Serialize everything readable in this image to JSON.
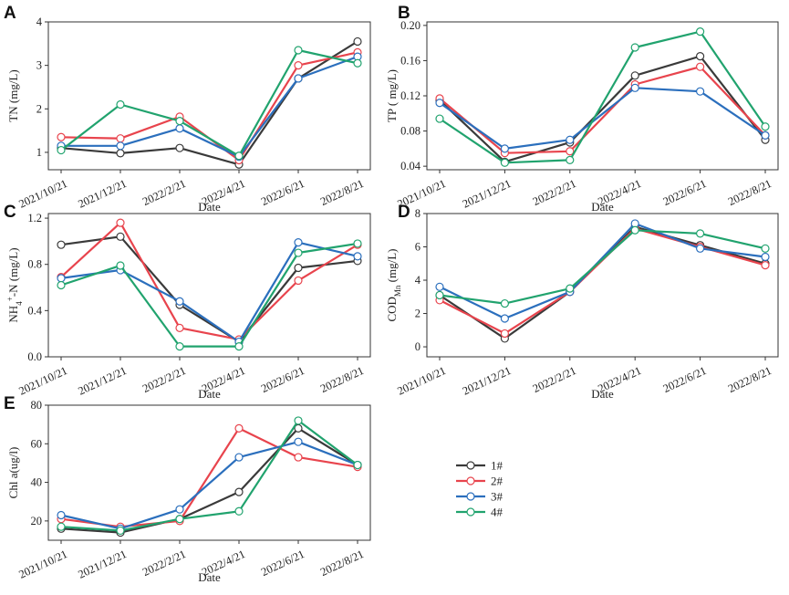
{
  "legend": {
    "entries": [
      "1#",
      "2#",
      "3#",
      "4#"
    ],
    "colors": [
      "#3a3a3a",
      "#e8444d",
      "#2b6fbd",
      "#21a36e"
    ]
  },
  "chart_data": [
    {
      "type": "line",
      "panel": "A",
      "categories": [
        "2021/10/21",
        "2021/12/21",
        "2022/2/21",
        "2022/4/21",
        "2022/6/21",
        "2022/8/21"
      ],
      "xlabel": "Date",
      "ylabel": "TN (mg/L)",
      "ylim": [
        0.6,
        4.0
      ],
      "yticks": [
        1,
        2,
        3,
        4
      ],
      "series": [
        {
          "name": "1#",
          "values": [
            1.1,
            0.98,
            1.1,
            0.72,
            2.7,
            3.55
          ]
        },
        {
          "name": "2#",
          "values": [
            1.35,
            1.32,
            1.82,
            0.82,
            3.0,
            3.3
          ]
        },
        {
          "name": "3#",
          "values": [
            1.15,
            1.15,
            1.55,
            0.9,
            2.7,
            3.2
          ]
        },
        {
          "name": "4#",
          "values": [
            1.05,
            2.1,
            1.72,
            0.92,
            3.35,
            3.05
          ]
        }
      ]
    },
    {
      "type": "line",
      "panel": "B",
      "categories": [
        "2021/10/21",
        "2021/12/21",
        "2022/2/21",
        "2022/4/21",
        "2022/6/21",
        "2022/8/21"
      ],
      "xlabel": "Date",
      "ylabel": "TP ( mg/L)",
      "ylim": [
        0.036,
        0.204
      ],
      "yticks": [
        "0.04",
        "0.08",
        "0.12",
        "0.16",
        "0.20"
      ],
      "series": [
        {
          "name": "1#",
          "values": [
            0.115,
            0.045,
            0.067,
            0.143,
            0.165,
            0.07
          ]
        },
        {
          "name": "2#",
          "values": [
            0.117,
            0.055,
            0.057,
            0.133,
            0.153,
            0.075
          ]
        },
        {
          "name": "3#",
          "values": [
            0.112,
            0.06,
            0.07,
            0.129,
            0.125,
            0.075
          ]
        },
        {
          "name": "4#",
          "values": [
            0.094,
            0.044,
            0.047,
            0.175,
            0.193,
            0.085
          ]
        }
      ]
    },
    {
      "type": "line",
      "panel": "C",
      "categories": [
        "2021/10/21",
        "2021/12/21",
        "2022/2/21",
        "2022/4/21",
        "2022/6/21",
        "2022/8/21"
      ],
      "xlabel": "Date",
      "ylabel": "NH4+-N (mg/L)",
      "ylim": [
        0.0,
        1.24
      ],
      "yticks": [
        "0.0",
        "0.4",
        "0.8",
        "1.2"
      ],
      "series": [
        {
          "name": "1#",
          "values": [
            0.97,
            1.04,
            0.45,
            0.13,
            0.77,
            0.83
          ]
        },
        {
          "name": "2#",
          "values": [
            0.69,
            1.16,
            0.25,
            0.15,
            0.66,
            0.97
          ]
        },
        {
          "name": "3#",
          "values": [
            0.68,
            0.75,
            0.48,
            0.13,
            0.99,
            0.87
          ]
        },
        {
          "name": "4#",
          "values": [
            0.62,
            0.79,
            0.09,
            0.09,
            0.9,
            0.98
          ]
        }
      ]
    },
    {
      "type": "line",
      "panel": "D",
      "categories": [
        "2021/10/21",
        "2021/12/21",
        "2022/2/21",
        "2022/4/21",
        "2022/6/21",
        "2022/8/21"
      ],
      "xlabel": "Date",
      "ylabel": "COD",
      "ylabel_sub": "Mn",
      "ylabel_suffix": " (mg/L)",
      "ylim": [
        -0.6,
        8.0
      ],
      "yticks": [
        0,
        2,
        4,
        6,
        8
      ],
      "series": [
        {
          "name": "1#",
          "values": [
            3.1,
            0.5,
            3.3,
            7.2,
            6.1,
            5.0
          ]
        },
        {
          "name": "2#",
          "values": [
            2.8,
            0.8,
            3.3,
            7.1,
            6.0,
            4.9
          ]
        },
        {
          "name": "3#",
          "values": [
            3.6,
            1.7,
            3.3,
            7.4,
            5.9,
            5.4
          ]
        },
        {
          "name": "4#",
          "values": [
            3.1,
            2.6,
            3.5,
            7.0,
            6.8,
            5.9
          ]
        }
      ]
    },
    {
      "type": "line",
      "panel": "E",
      "categories": [
        "2021/10/21",
        "2021/12/21",
        "2022/2/21",
        "2022/4/21",
        "2022/6/21",
        "2022/8/21"
      ],
      "xlabel": "Date",
      "ylabel": "Chl a(ug/l)",
      "ylim": [
        10,
        80
      ],
      "yticks": [
        20,
        40,
        60,
        80
      ],
      "series": [
        {
          "name": "1#",
          "values": [
            16,
            14,
            21,
            35,
            68,
            49
          ]
        },
        {
          "name": "2#",
          "values": [
            21,
            17,
            20,
            68,
            53,
            48
          ]
        },
        {
          "name": "3#",
          "values": [
            23,
            16,
            26,
            53,
            61,
            49
          ]
        },
        {
          "name": "4#",
          "values": [
            17,
            15,
            21,
            25,
            72,
            49
          ]
        }
      ]
    }
  ]
}
